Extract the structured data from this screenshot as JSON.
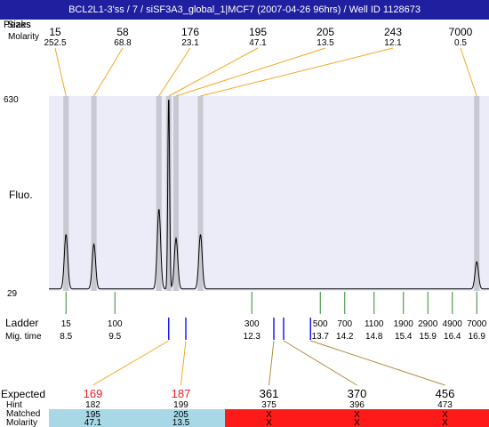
{
  "title": "BCL2L1-3'ss / 7 / siSF3A3_global_1|MCF7 (2007-04-26 96hrs) / Well ID 1128673",
  "labels": {
    "peaks_overlay_top": "Peaks",
    "sizes": "Sizes",
    "molarity": "Molarity",
    "fluo": "Fluo.",
    "y_max": "630",
    "y_min": "29",
    "ladder": "Ladder",
    "mig_time": "Mig. time",
    "expected": "Expected",
    "hint": "Hint",
    "matched": "Matched",
    "molarity_bottom": "Molarity"
  },
  "colors": {
    "title_bg": "#1f1f9f",
    "plot_bg": "#ececf8",
    "band": "#c8c8d2",
    "connector": "#f5a623",
    "ladder_tick": "#2e8b2e",
    "marker_blue": "#1a1aff",
    "expected_red": "#e8202a",
    "matched_ok": "#a8d8e6",
    "matched_fail": "#ff1a1a"
  },
  "chart_data": {
    "type": "line",
    "y_range": [
      29,
      630
    ],
    "peaks": [
      {
        "size": "15",
        "molarity": "252.5",
        "mig_time": 8.5,
        "height": 0.28
      },
      {
        "size": "58",
        "molarity": "68.8",
        "mig_time": 9.07,
        "height": 0.23
      },
      {
        "size": "176",
        "molarity": "23.1",
        "mig_time": 10.4,
        "height": 0.41
      },
      {
        "size": "195",
        "molarity": "47.1",
        "mig_time": 10.6,
        "height": 1.0
      },
      {
        "size": "205",
        "molarity": "13.5",
        "mig_time": 10.75,
        "height": 0.26
      },
      {
        "size": "243",
        "molarity": "12.1",
        "mig_time": 11.25,
        "height": 0.28
      },
      {
        "size": "7000",
        "molarity": "0.5",
        "mig_time": 16.9,
        "height": 0.14
      }
    ],
    "ladder": [
      {
        "size": "15",
        "mig_time": "8.5"
      },
      {
        "size": "100",
        "mig_time": "9.5"
      },
      {
        "size": "300",
        "mig_time": "12.3"
      },
      {
        "size": "500",
        "mig_time": "13.7"
      },
      {
        "size": "700",
        "mig_time": "14.2"
      },
      {
        "size": "1100",
        "mig_time": "14.8"
      },
      {
        "size": "1900",
        "mig_time": "15.4"
      },
      {
        "size": "2900",
        "mig_time": "15.9"
      },
      {
        "size": "4900",
        "mig_time": "16.4"
      },
      {
        "size": "7000",
        "mig_time": "16.9"
      }
    ],
    "expected": [
      {
        "expected": "169",
        "hint": "182",
        "matched": "195",
        "molarity": "47.1",
        "status": "matched",
        "highlight": true,
        "mig_time": 10.6
      },
      {
        "expected": "187",
        "hint": "199",
        "matched": "205",
        "molarity": "13.5",
        "status": "matched",
        "highlight": true,
        "mig_time": 10.95
      },
      {
        "expected": "361",
        "hint": "375",
        "matched": "X",
        "molarity": "X",
        "status": "missing",
        "highlight": false,
        "mig_time": 12.75
      },
      {
        "expected": "370",
        "hint": "396",
        "matched": "X",
        "molarity": "X",
        "status": "missing",
        "highlight": false,
        "mig_time": 12.95
      },
      {
        "expected": "456",
        "hint": "473",
        "matched": "X",
        "molarity": "X",
        "status": "missing",
        "highlight": false,
        "mig_time": 13.5
      }
    ]
  }
}
